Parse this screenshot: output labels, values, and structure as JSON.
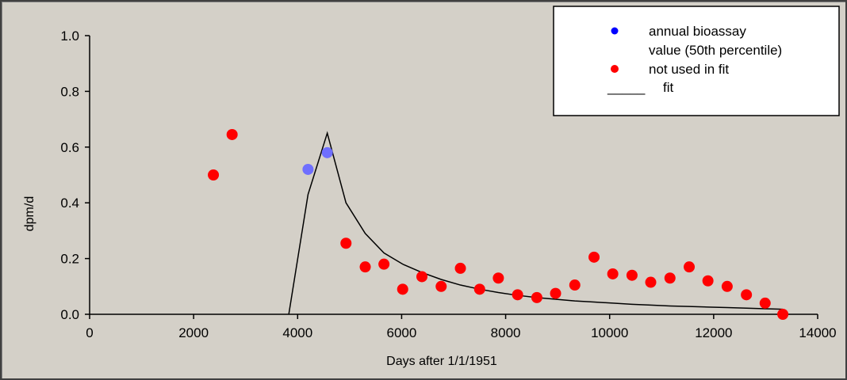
{
  "chart_data": {
    "type": "scatter",
    "xlabel": "Days after 1/1/1951",
    "ylabel": "dpm/d",
    "xlim": [
      0,
      14000
    ],
    "ylim": [
      0,
      1.0
    ],
    "x_ticks": [
      0,
      2000,
      4000,
      6000,
      8000,
      10000,
      12000,
      14000
    ],
    "y_ticks": [
      0.0,
      0.2,
      0.4,
      0.6,
      0.8,
      1.0
    ],
    "x_tick_labels": [
      "0",
      "2000",
      "4000",
      "6000",
      "8000",
      "10000",
      "12000",
      "14000"
    ],
    "y_tick_labels": [
      "0.0",
      "0.2",
      "0.4",
      "0.6",
      "0.8",
      "1.0"
    ],
    "grid": false,
    "legend_position": "top-right",
    "colors": {
      "bioassay": "#6f6fff",
      "not_used": "#ff0000",
      "fit": "#000000",
      "background": "#d4d0c8"
    },
    "series": [
      {
        "name": "annual bioassay value (50th percentile)",
        "kind": "points",
        "points": [
          [
            4200,
            0.52
          ],
          [
            4570,
            0.58
          ]
        ]
      },
      {
        "name": "not used in fit",
        "kind": "points",
        "points": [
          [
            2380,
            0.5
          ],
          [
            2740,
            0.645
          ],
          [
            4930,
            0.255
          ],
          [
            5300,
            0.17
          ],
          [
            5660,
            0.18
          ],
          [
            6020,
            0.09
          ],
          [
            6390,
            0.135
          ],
          [
            6760,
            0.1
          ],
          [
            7130,
            0.165
          ],
          [
            7500,
            0.09
          ],
          [
            7860,
            0.13
          ],
          [
            8230,
            0.07
          ],
          [
            8600,
            0.06
          ],
          [
            8960,
            0.075
          ],
          [
            9330,
            0.105
          ],
          [
            9700,
            0.205
          ],
          [
            10060,
            0.145
          ],
          [
            10430,
            0.14
          ],
          [
            10790,
            0.115
          ],
          [
            11160,
            0.13
          ],
          [
            11530,
            0.17
          ],
          [
            11890,
            0.12
          ],
          [
            12260,
            0.1
          ],
          [
            12630,
            0.07
          ],
          [
            12990,
            0.04
          ],
          [
            13330,
            0.0
          ]
        ]
      },
      {
        "name": "fit",
        "kind": "line",
        "points": [
          [
            3830,
            0.0
          ],
          [
            4200,
            0.43
          ],
          [
            4570,
            0.65
          ],
          [
            4930,
            0.4
          ],
          [
            5300,
            0.29
          ],
          [
            5660,
            0.22
          ],
          [
            6020,
            0.18
          ],
          [
            6390,
            0.15
          ],
          [
            6760,
            0.125
          ],
          [
            7130,
            0.105
          ],
          [
            7500,
            0.09
          ],
          [
            7860,
            0.078
          ],
          [
            8230,
            0.068
          ],
          [
            8600,
            0.06
          ],
          [
            8960,
            0.054
          ],
          [
            9330,
            0.048
          ],
          [
            9700,
            0.044
          ],
          [
            10060,
            0.04
          ],
          [
            10430,
            0.036
          ],
          [
            10790,
            0.033
          ],
          [
            11160,
            0.03
          ],
          [
            11530,
            0.028
          ],
          [
            11890,
            0.026
          ],
          [
            12260,
            0.024
          ],
          [
            12630,
            0.022
          ],
          [
            12990,
            0.02
          ],
          [
            13330,
            0.018
          ]
        ]
      }
    ]
  },
  "legend": {
    "bioassay_line1": "annual bioassay",
    "bioassay_line2": "value (50th percentile)",
    "not_used": "not used in fit",
    "fit_marker": "_____",
    "fit": "fit"
  }
}
